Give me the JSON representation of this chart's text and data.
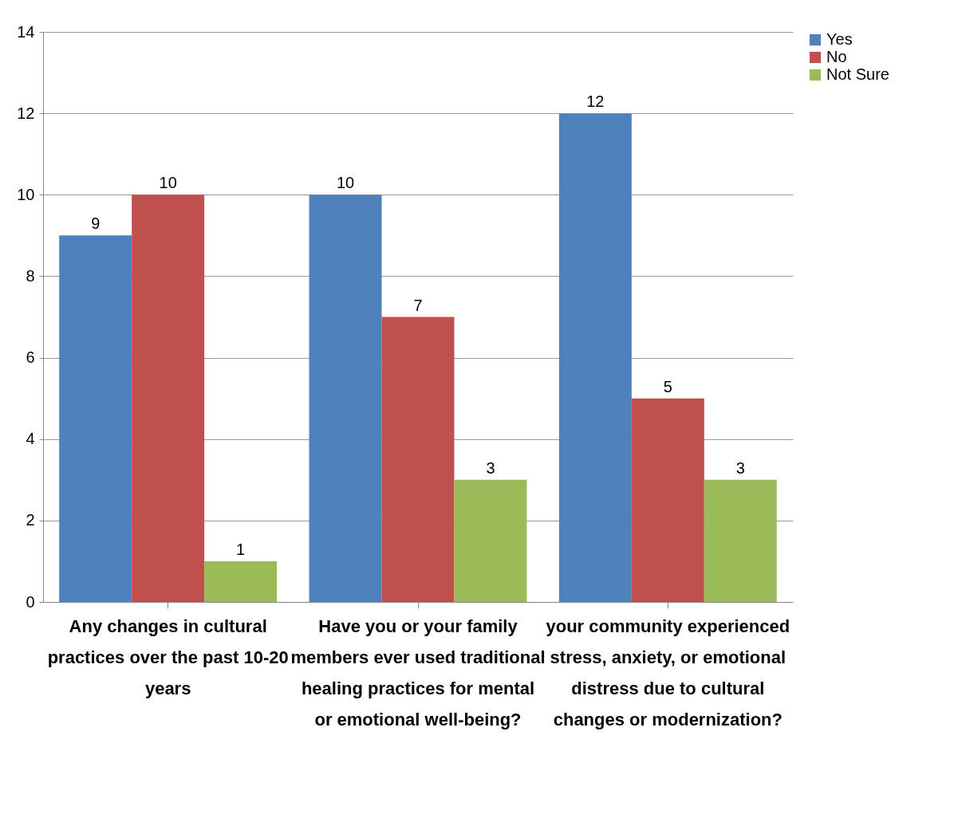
{
  "chart_data": {
    "type": "bar",
    "categories": [
      "Any changes in cultural practices over the past 10-20 years",
      "Have you or your family members ever used traditional healing practices for mental or emotional well-being?",
      "your community experienced stress, anxiety, or emotional distress due to cultural changes or modernization?"
    ],
    "series": [
      {
        "name": "Yes",
        "color": "#4f81bd",
        "values": [
          9,
          10,
          12
        ]
      },
      {
        "name": "No",
        "color": "#c0504d",
        "values": [
          10,
          7,
          5
        ]
      },
      {
        "name": "Not Sure",
        "color": "#9bbb59",
        "values": [
          1,
          3,
          3
        ]
      }
    ],
    "ylim": [
      0,
      14
    ],
    "yticks": [
      0,
      2,
      4,
      6,
      8,
      10,
      12,
      14
    ],
    "grid": "y",
    "legend": "right",
    "data_labels": true
  }
}
